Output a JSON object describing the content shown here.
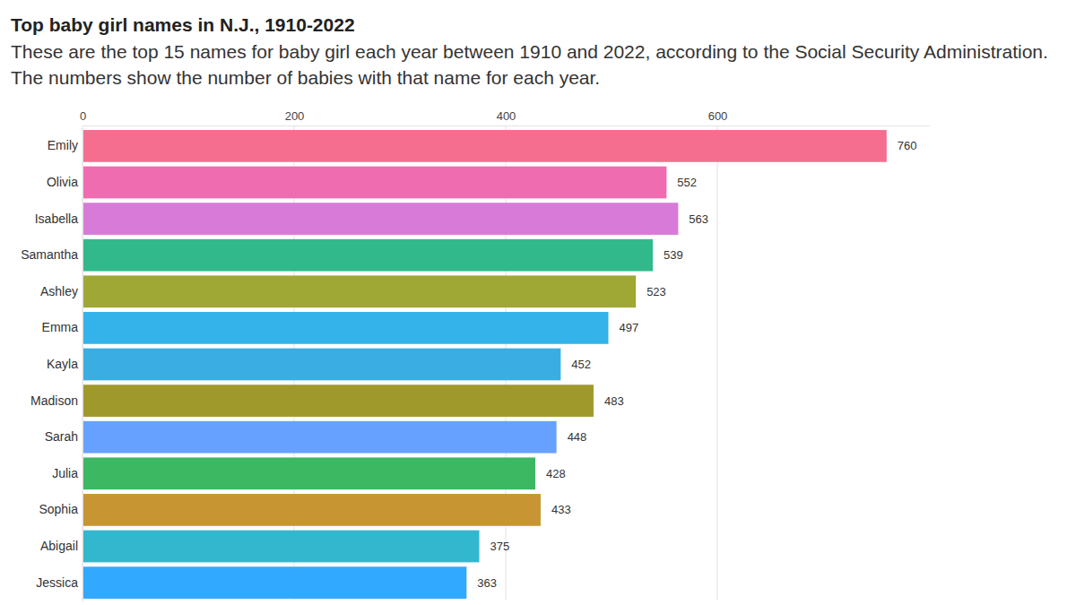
{
  "chart_data": {
    "type": "bar",
    "orientation": "horizontal",
    "title": "Top baby girl names in N.J., 1910-2022",
    "subtitle": "These are the top 15 names for baby girl each year between 1910 and 2022, according to the Social Security Administration. The numbers show the number of babies with that name for each year.",
    "categories": [
      "Emily",
      "Olivia",
      "Isabella",
      "Samantha",
      "Ashley",
      "Emma",
      "Kayla",
      "Madison",
      "Sarah",
      "Julia",
      "Sophia",
      "Abigail",
      "Jessica"
    ],
    "values": [
      760,
      552,
      563,
      539,
      523,
      497,
      452,
      483,
      448,
      428,
      433,
      375,
      363
    ],
    "colors": [
      "#f4668a",
      "#ef64ad",
      "#d674d6",
      "#26b586",
      "#9aa22a",
      "#29aee9",
      "#2fa9e0",
      "#9a9320",
      "#5f9cff",
      "#31b35a",
      "#c48f27",
      "#28b3cc",
      "#26a4ff"
    ],
    "xlim": [
      0,
      800
    ],
    "xticks": [
      0,
      200,
      400,
      600
    ],
    "grid": true,
    "data_labels": true
  }
}
